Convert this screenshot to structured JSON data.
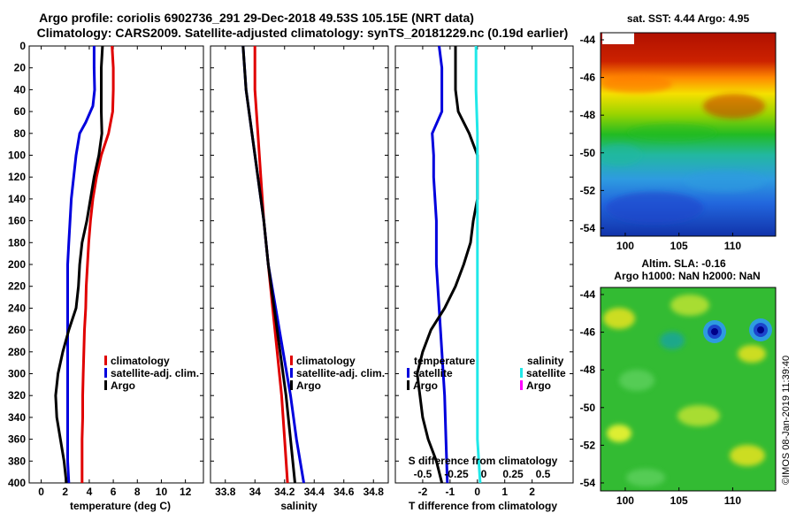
{
  "header": {
    "line1": "Argo profile: coriolis 6902736_291 29-Dec-2018 49.53S 105.15E (NRT data)",
    "line2": "Climatology: CARS2009. Satellite-adjusted climatology: synTS_20181229.nc (0.19d earlier)"
  },
  "watermark": "©IMOS 08-Jan-2019 11:39:40",
  "colors": {
    "red": "#e00000",
    "blue": "#0000dd",
    "black": "#000000",
    "cyan": "#20e8e8",
    "magenta": "#ff00ff"
  },
  "chart_data": [
    {
      "type": "line",
      "panel": "temperature",
      "xlabel": "temperature (deg C)",
      "ylabel": "depth",
      "xlim": [
        -1,
        13.5
      ],
      "ylim": [
        400,
        0
      ],
      "xticks": [
        0,
        2,
        4,
        6,
        8,
        10,
        12
      ],
      "yticks": [
        0,
        20,
        40,
        60,
        80,
        100,
        120,
        140,
        160,
        180,
        200,
        220,
        240,
        260,
        280,
        300,
        320,
        340,
        360,
        380,
        400
      ],
      "legend": [
        "climatology",
        "satellite-adj. clim.",
        "Argo"
      ],
      "series": [
        {
          "name": "climatology",
          "color": "red",
          "points": [
            [
              5.9,
              0
            ],
            [
              6.0,
              20
            ],
            [
              6.0,
              40
            ],
            [
              5.95,
              60
            ],
            [
              5.6,
              80
            ],
            [
              5.0,
              100
            ],
            [
              4.6,
              120
            ],
            [
              4.3,
              140
            ],
            [
              4.1,
              160
            ],
            [
              3.95,
              180
            ],
            [
              3.85,
              200
            ],
            [
              3.75,
              220
            ],
            [
              3.7,
              240
            ],
            [
              3.6,
              260
            ],
            [
              3.55,
              280
            ],
            [
              3.5,
              300
            ],
            [
              3.45,
              320
            ],
            [
              3.45,
              340
            ],
            [
              3.4,
              360
            ],
            [
              3.4,
              380
            ],
            [
              3.4,
              400
            ]
          ]
        },
        {
          "name": "satellite-adj. clim.",
          "color": "blue",
          "points": [
            [
              4.4,
              0
            ],
            [
              4.4,
              20
            ],
            [
              4.45,
              40
            ],
            [
              4.3,
              55
            ],
            [
              3.7,
              70
            ],
            [
              3.2,
              80
            ],
            [
              2.9,
              100
            ],
            [
              2.7,
              120
            ],
            [
              2.5,
              140
            ],
            [
              2.4,
              160
            ],
            [
              2.3,
              180
            ],
            [
              2.2,
              200
            ],
            [
              2.2,
              220
            ],
            [
              2.2,
              240
            ],
            [
              2.2,
              260
            ],
            [
              2.2,
              280
            ],
            [
              2.2,
              300
            ],
            [
              2.2,
              320
            ],
            [
              2.2,
              340
            ],
            [
              2.2,
              360
            ],
            [
              2.2,
              380
            ],
            [
              2.3,
              400
            ]
          ]
        },
        {
          "name": "Argo",
          "color": "black",
          "points": [
            [
              5.1,
              0
            ],
            [
              5.0,
              20
            ],
            [
              5.0,
              40
            ],
            [
              5.0,
              60
            ],
            [
              5.05,
              80
            ],
            [
              4.8,
              100
            ],
            [
              4.4,
              120
            ],
            [
              4.1,
              140
            ],
            [
              3.8,
              160
            ],
            [
              3.4,
              180
            ],
            [
              3.2,
              200
            ],
            [
              3.1,
              220
            ],
            [
              2.9,
              240
            ],
            [
              2.3,
              260
            ],
            [
              1.8,
              280
            ],
            [
              1.4,
              300
            ],
            [
              1.2,
              320
            ],
            [
              1.3,
              340
            ],
            [
              1.6,
              360
            ],
            [
              1.9,
              380
            ],
            [
              2.1,
              400
            ]
          ]
        }
      ]
    },
    {
      "type": "line",
      "panel": "salinity",
      "xlabel": "salinity",
      "ylabel": "depth",
      "xlim": [
        33.7,
        34.9
      ],
      "ylim": [
        400,
        0
      ],
      "xticks": [
        33.8,
        34,
        34.2,
        34.4,
        34.6,
        34.8
      ],
      "legend": [
        "climatology",
        "satellite-adj. clim.",
        "Argo"
      ],
      "series": [
        {
          "name": "climatology",
          "color": "red",
          "points": [
            [
              34.0,
              0
            ],
            [
              34.0,
              40
            ],
            [
              34.02,
              80
            ],
            [
              34.04,
              120
            ],
            [
              34.06,
              160
            ],
            [
              34.09,
              200
            ],
            [
              34.12,
              240
            ],
            [
              34.15,
              280
            ],
            [
              34.18,
              320
            ],
            [
              34.2,
              360
            ],
            [
              34.22,
              400
            ]
          ]
        },
        {
          "name": "satellite-adj. clim.",
          "color": "blue",
          "points": [
            [
              33.92,
              0
            ],
            [
              33.94,
              40
            ],
            [
              33.98,
              80
            ],
            [
              34.02,
              120
            ],
            [
              34.06,
              160
            ],
            [
              34.09,
              200
            ],
            [
              34.14,
              240
            ],
            [
              34.19,
              280
            ],
            [
              34.24,
              320
            ],
            [
              34.28,
              360
            ],
            [
              34.33,
              400
            ]
          ]
        },
        {
          "name": "Argo",
          "color": "black",
          "points": [
            [
              33.92,
              0
            ],
            [
              33.94,
              40
            ],
            [
              33.98,
              80
            ],
            [
              34.02,
              120
            ],
            [
              34.06,
              160
            ],
            [
              34.09,
              200
            ],
            [
              34.13,
              240
            ],
            [
              34.17,
              280
            ],
            [
              34.21,
              320
            ],
            [
              34.24,
              360
            ],
            [
              34.27,
              400
            ]
          ]
        }
      ]
    },
    {
      "type": "line",
      "panel": "difference",
      "xlabel": "T difference from climatology",
      "secondary_xlabel": "S difference from climatology",
      "xlim": [
        -3,
        3.5
      ],
      "ylim": [
        400,
        0
      ],
      "xticks": [
        -2,
        -1,
        0,
        1,
        2
      ],
      "s_ticks": [
        -0.5,
        -0.25,
        0,
        0.25,
        0.5
      ],
      "legend_temperature": {
        "title": "temperature",
        "items": [
          "satellite",
          "Argo"
        ]
      },
      "legend_salinity": {
        "title": "salinity",
        "items": [
          "satellite",
          "Argo"
        ]
      },
      "series": [
        {
          "name": "T satellite",
          "color": "blue",
          "points": [
            [
              -1.4,
              0
            ],
            [
              -1.3,
              20
            ],
            [
              -1.3,
              40
            ],
            [
              -1.3,
              60
            ],
            [
              -1.65,
              80
            ],
            [
              -1.6,
              100
            ],
            [
              -1.6,
              120
            ],
            [
              -1.5,
              160
            ],
            [
              -1.5,
              200
            ],
            [
              -1.4,
              240
            ],
            [
              -1.3,
              280
            ],
            [
              -1.2,
              320
            ],
            [
              -1.15,
              360
            ],
            [
              -1.1,
              400
            ]
          ]
        },
        {
          "name": "T Argo",
          "color": "black",
          "points": [
            [
              -0.8,
              0
            ],
            [
              -0.8,
              20
            ],
            [
              -0.8,
              40
            ],
            [
              -0.7,
              60
            ],
            [
              -0.3,
              80
            ],
            [
              0.0,
              100
            ],
            [
              0.0,
              140
            ],
            [
              -0.15,
              160
            ],
            [
              -0.25,
              180
            ],
            [
              -0.5,
              200
            ],
            [
              -0.8,
              220
            ],
            [
              -1.2,
              240
            ],
            [
              -1.7,
              260
            ],
            [
              -2.0,
              280
            ],
            [
              -2.2,
              300
            ],
            [
              -2.1,
              320
            ],
            [
              -2.0,
              340
            ],
            [
              -1.8,
              360
            ],
            [
              -1.5,
              380
            ],
            [
              -1.3,
              400
            ]
          ]
        },
        {
          "name": "S satellite",
          "color": "cyan",
          "points": [
            [
              -0.05,
              0
            ],
            [
              -0.05,
              40
            ],
            [
              0.0,
              80
            ],
            [
              0.0,
              120
            ],
            [
              0.0,
              160
            ],
            [
              0.0,
              200
            ],
            [
              0.0,
              240
            ],
            [
              0.0,
              280
            ],
            [
              0.0,
              320
            ],
            [
              0.0,
              360
            ],
            [
              0.1,
              400
            ]
          ]
        }
      ]
    },
    {
      "type": "heatmap",
      "panel": "sst_map",
      "title": "sat. SST: 4.44 Argo: 4.95",
      "xticks": [
        100,
        105,
        110
      ],
      "yticks": [
        -44,
        -46,
        -48,
        -50,
        -52,
        -54
      ]
    },
    {
      "type": "heatmap",
      "panel": "sla_map",
      "title_line1": "Altim. SLA: -0.16",
      "title_line2": "Argo h1000: NaN h2000: NaN",
      "xticks": [
        100,
        105,
        110
      ],
      "yticks": [
        -44,
        -46,
        -48,
        -50,
        -52,
        -54
      ]
    }
  ]
}
